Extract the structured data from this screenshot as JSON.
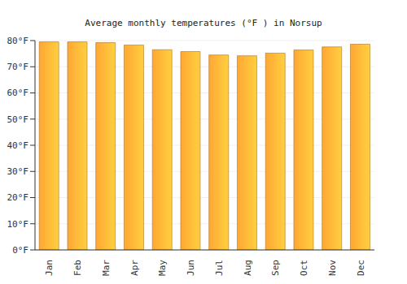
{
  "chart_data": {
    "type": "bar",
    "title": "Average monthly temperatures (°F ) in Norsup",
    "categories": [
      "Jan",
      "Feb",
      "Mar",
      "Apr",
      "May",
      "Jun",
      "Jul",
      "Aug",
      "Sep",
      "Oct",
      "Nov",
      "Dec"
    ],
    "values": [
      79.5,
      79.5,
      79.2,
      78.3,
      76.5,
      75.8,
      74.5,
      74.2,
      75.2,
      76.4,
      77.6,
      78.6
    ],
    "color": "#ffa733",
    "ylim": [
      0,
      80
    ],
    "yticks": [
      {
        "value": 0,
        "label": "0°F"
      },
      {
        "value": 10,
        "label": "10°F"
      },
      {
        "value": 20,
        "label": "20°F"
      },
      {
        "value": 30,
        "label": "30°F"
      },
      {
        "value": 40,
        "label": "40°F"
      },
      {
        "value": 50,
        "label": "50°F"
      },
      {
        "value": 60,
        "label": "60°F"
      },
      {
        "value": 70,
        "label": "70°F"
      },
      {
        "value": 80,
        "label": "80°F"
      }
    ],
    "grid": true
  }
}
